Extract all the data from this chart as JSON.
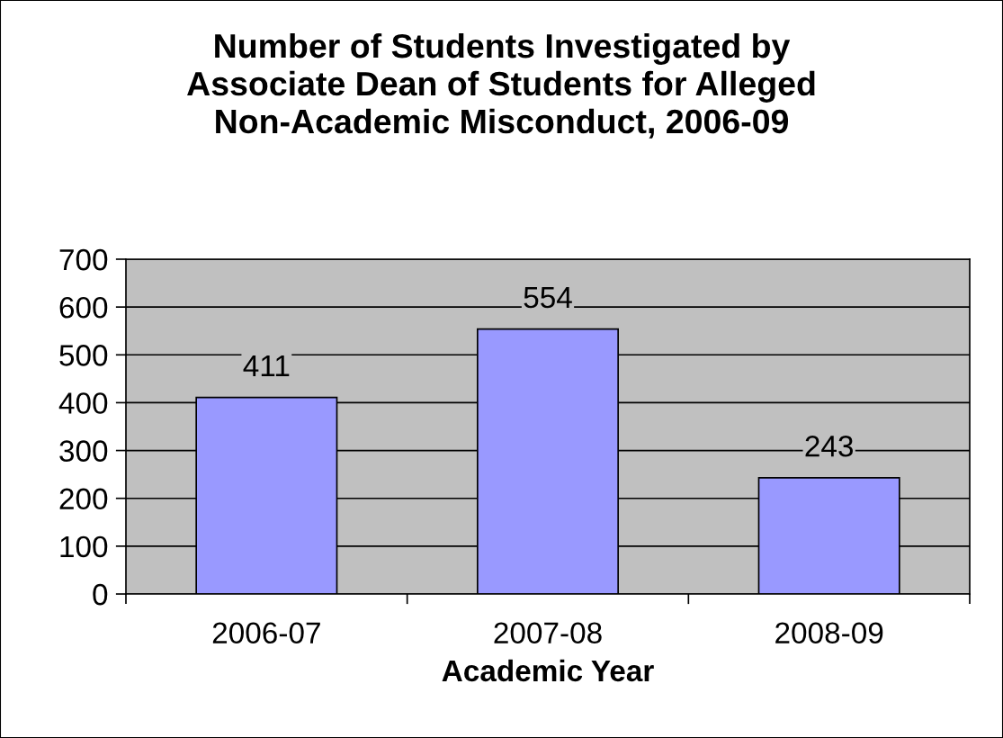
{
  "chart_data": {
    "type": "bar",
    "title": "Number of Students Investigated by\nAssociate Dean of Students for Alleged\nNon-Academic Misconduct, 2006-09",
    "xlabel": "Academic Year",
    "categories": [
      "2006-07",
      "2007-08",
      "2008-09"
    ],
    "values": [
      411,
      554,
      243
    ],
    "color": "#9999ff",
    "ylim": [
      0,
      700
    ],
    "yticks": [
      0,
      100,
      200,
      300,
      400,
      500,
      600,
      700
    ],
    "grid": "y",
    "data_labels": true,
    "legend": false
  }
}
